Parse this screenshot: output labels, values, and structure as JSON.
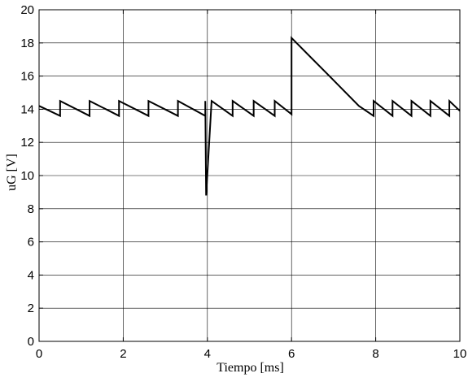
{
  "chart_data": {
    "type": "line",
    "xlabel": "Tiempo [ms]",
    "ylabel": "uG [V]",
    "xlim": [
      0,
      10
    ],
    "ylim": [
      0,
      20
    ],
    "xticks": [
      0,
      2,
      4,
      6,
      8,
      10
    ],
    "yticks": [
      0,
      2,
      4,
      6,
      8,
      10,
      12,
      14,
      16,
      18,
      20
    ],
    "grid": true,
    "series": [
      {
        "color": "#000000",
        "points": [
          [
            0.0,
            14.2
          ],
          [
            0.5,
            13.6
          ],
          [
            0.5,
            14.5
          ],
          [
            1.2,
            13.6
          ],
          [
            1.2,
            14.5
          ],
          [
            1.9,
            13.6
          ],
          [
            1.9,
            14.5
          ],
          [
            2.6,
            13.6
          ],
          [
            2.6,
            14.5
          ],
          [
            3.3,
            13.6
          ],
          [
            3.3,
            14.5
          ],
          [
            3.95,
            13.6
          ],
          [
            3.95,
            14.5
          ],
          [
            3.97,
            8.8
          ],
          [
            4.1,
            14.5
          ],
          [
            4.6,
            13.6
          ],
          [
            4.6,
            14.5
          ],
          [
            5.1,
            13.6
          ],
          [
            5.1,
            14.5
          ],
          [
            5.6,
            13.6
          ],
          [
            5.6,
            14.5
          ],
          [
            6.0,
            13.7
          ],
          [
            6.0,
            18.3
          ],
          [
            6.9,
            16.0
          ],
          [
            7.6,
            14.2
          ],
          [
            7.95,
            13.6
          ],
          [
            7.95,
            14.5
          ],
          [
            8.4,
            13.6
          ],
          [
            8.4,
            14.5
          ],
          [
            8.85,
            13.6
          ],
          [
            8.85,
            14.5
          ],
          [
            9.3,
            13.6
          ],
          [
            9.3,
            14.5
          ],
          [
            9.75,
            13.6
          ],
          [
            9.75,
            14.5
          ],
          [
            10.0,
            13.9
          ]
        ]
      }
    ]
  }
}
